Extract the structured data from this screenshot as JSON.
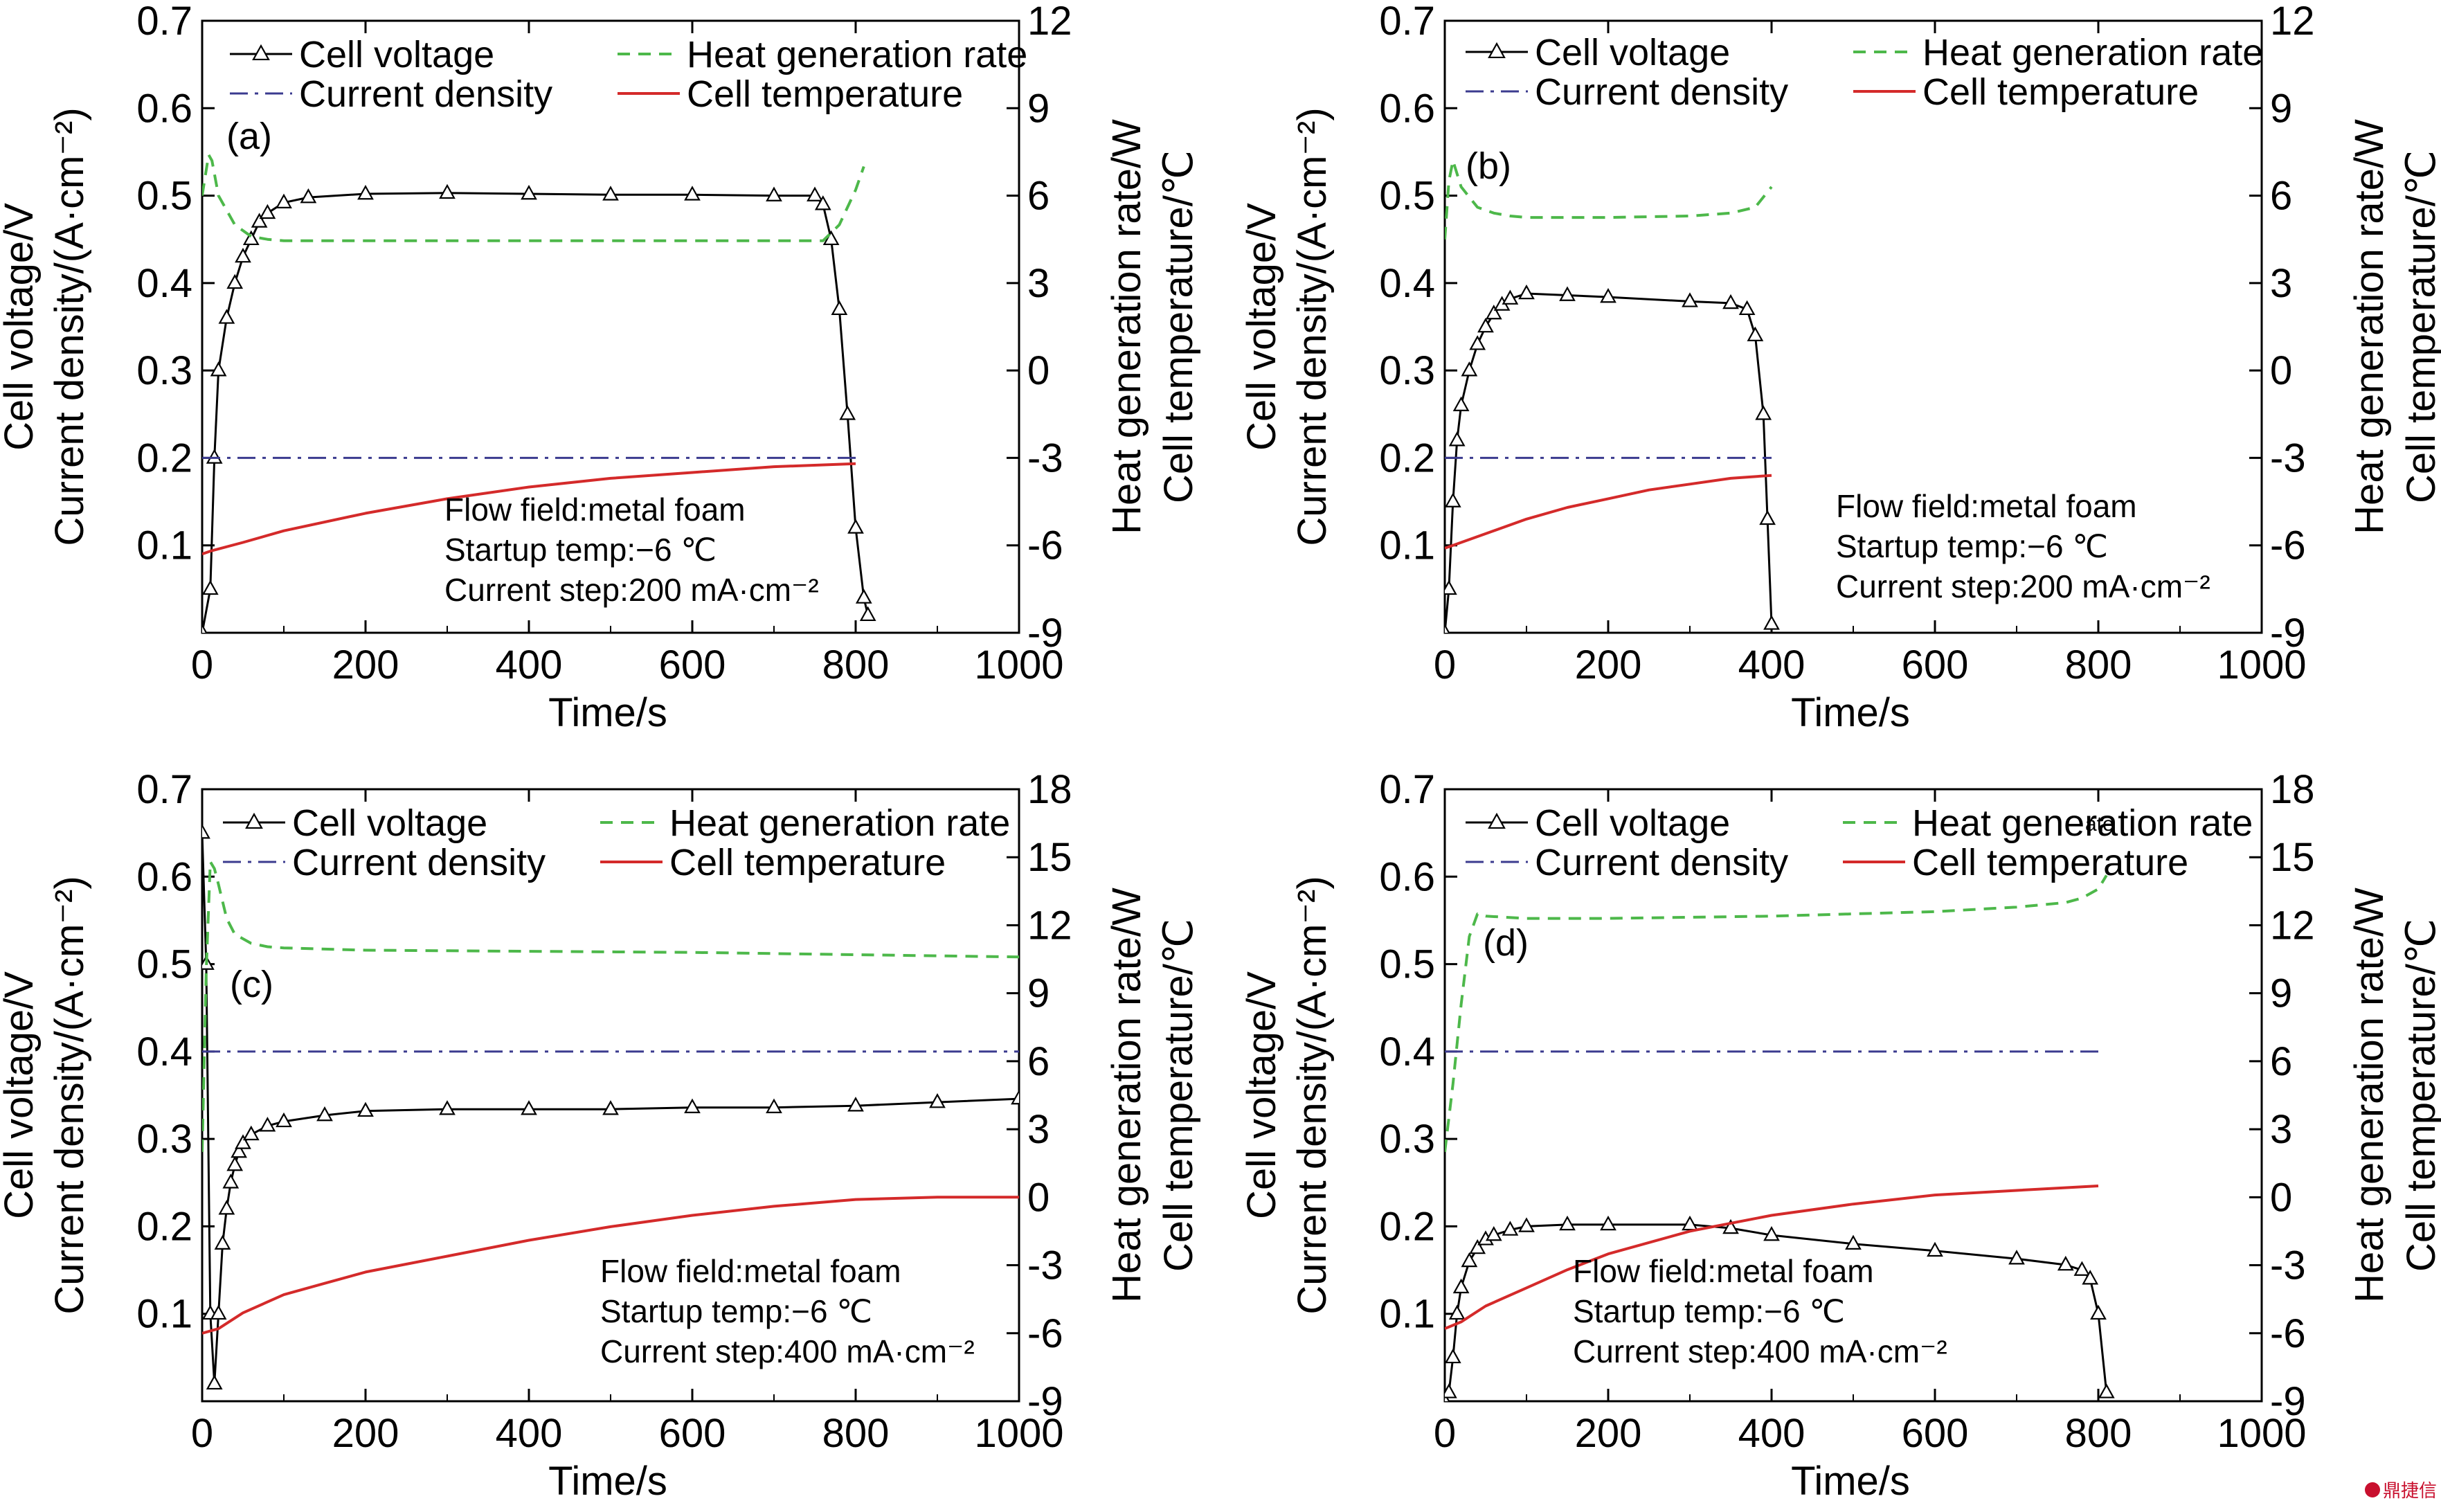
{
  "chart_data": [
    {
      "type": "line",
      "panel_label": "(a)",
      "xlabel": "Time/s",
      "ylabel_left": [
        "Cell voltage/V",
        "Current density/(A·cm⁻²)"
      ],
      "ylabel_right": [
        "Heat generation rate/W",
        "Cell temperature/℃"
      ],
      "xlim": [
        0,
        1000
      ],
      "xticks": [
        0,
        200,
        400,
        600,
        800,
        1000
      ],
      "ylim_left": [
        0,
        0.7
      ],
      "yticks_left": [
        0.1,
        0.2,
        0.3,
        0.4,
        0.5,
        0.6,
        0.7
      ],
      "ylim_right": [
        -9,
        12
      ],
      "yticks_right": [
        -9,
        -6,
        -3,
        0,
        3,
        6,
        9,
        12
      ],
      "legend": [
        "Cell voltage",
        "Current density",
        "Heat generation rate",
        "Cell temperature"
      ],
      "annotation": [
        "Flow field:metal foam",
        "Startup temp:−6 ℃",
        "Current step:200 mA·cm⁻²"
      ],
      "series": [
        {
          "name": "Cell voltage",
          "axis": "left",
          "x": [
            0,
            10,
            15,
            20,
            30,
            40,
            50,
            60,
            70,
            80,
            100,
            130,
            200,
            300,
            400,
            500,
            600,
            700,
            750,
            760,
            770,
            780,
            790,
            800,
            810,
            815
          ],
          "y": [
            0,
            0.05,
            0.2,
            0.3,
            0.36,
            0.4,
            0.43,
            0.45,
            0.47,
            0.48,
            0.492,
            0.498,
            0.502,
            0.503,
            0.502,
            0.501,
            0.501,
            0.5,
            0.5,
            0.49,
            0.45,
            0.37,
            0.25,
            0.12,
            0.04,
            0.02
          ]
        },
        {
          "name": "Current density",
          "axis": "left",
          "x": [
            0,
            800
          ],
          "y": [
            0.2,
            0.2
          ]
        },
        {
          "name": "Heat generation rate",
          "axis": "right",
          "x": [
            0,
            8,
            12,
            20,
            40,
            60,
            80,
            100,
            200,
            400,
            600,
            760,
            780,
            800,
            810
          ],
          "y": [
            6,
            7.4,
            7.2,
            6,
            5,
            4.6,
            4.5,
            4.45,
            4.45,
            4.45,
            4.45,
            4.45,
            5,
            6.2,
            7
          ]
        },
        {
          "name": "Cell temperature",
          "axis": "right",
          "x": [
            0,
            10,
            50,
            100,
            200,
            300,
            400,
            500,
            600,
            700,
            800
          ],
          "y": [
            -6.3,
            -6.2,
            -5.9,
            -5.5,
            -4.9,
            -4.4,
            -4,
            -3.7,
            -3.5,
            -3.3,
            -3.2
          ]
        }
      ]
    },
    {
      "type": "line",
      "panel_label": "(b)",
      "xlabel": "Time/s",
      "ylabel_left": [
        "Cell voltage/V",
        "Current density/(A·cm⁻²)"
      ],
      "ylabel_right": [
        "Heat generation rate/W",
        "Cell temperature/℃"
      ],
      "xlim": [
        0,
        1000
      ],
      "xticks": [
        0,
        200,
        400,
        600,
        800,
        1000
      ],
      "ylim_left": [
        0,
        0.7
      ],
      "yticks_left": [
        0.1,
        0.2,
        0.3,
        0.4,
        0.5,
        0.6,
        0.7
      ],
      "ylim_right": [
        -9,
        12
      ],
      "yticks_right": [
        -9,
        -6,
        -3,
        0,
        3,
        6,
        9,
        12
      ],
      "legend": [
        "Cell voltage",
        "Current density",
        "Heat generation rate",
        "Cell temperature"
      ],
      "annotation": [
        "Flow field:metal foam",
        "Startup temp:−6 ℃",
        "Current step:200 mA·cm⁻²"
      ],
      "series": [
        {
          "name": "Cell voltage",
          "axis": "left",
          "x": [
            0,
            5,
            10,
            15,
            20,
            30,
            40,
            50,
            60,
            70,
            80,
            100,
            150,
            200,
            300,
            350,
            370,
            380,
            390,
            395,
            400
          ],
          "y": [
            0,
            0.05,
            0.15,
            0.22,
            0.26,
            0.3,
            0.33,
            0.35,
            0.365,
            0.375,
            0.382,
            0.388,
            0.386,
            0.384,
            0.379,
            0.377,
            0.37,
            0.34,
            0.25,
            0.13,
            0.01
          ]
        },
        {
          "name": "Current density",
          "axis": "left",
          "x": [
            0,
            400
          ],
          "y": [
            0.2,
            0.2
          ]
        },
        {
          "name": "Heat generation rate",
          "axis": "right",
          "x": [
            0,
            5,
            10,
            20,
            40,
            60,
            80,
            100,
            200,
            300,
            350,
            380,
            400
          ],
          "y": [
            4.5,
            6.5,
            7.2,
            6.3,
            5.6,
            5.4,
            5.3,
            5.25,
            5.25,
            5.3,
            5.4,
            5.6,
            6.3
          ]
        },
        {
          "name": "Cell temperature",
          "axis": "right",
          "x": [
            0,
            10,
            50,
            100,
            150,
            200,
            250,
            300,
            350,
            400
          ],
          "y": [
            -6.1,
            -6,
            -5.6,
            -5.1,
            -4.7,
            -4.4,
            -4.1,
            -3.9,
            -3.7,
            -3.6
          ]
        }
      ]
    },
    {
      "type": "line",
      "panel_label": "(c)",
      "xlabel": "Time/s",
      "ylabel_left": [
        "Cell voltage/V",
        "Current density/(A·cm⁻²)"
      ],
      "ylabel_right": [
        "Heat generation rate/W",
        "Cell temperature/℃"
      ],
      "xlim": [
        0,
        1000
      ],
      "xticks": [
        0,
        200,
        400,
        600,
        800,
        1000
      ],
      "ylim_left": [
        0,
        0.7
      ],
      "yticks_left": [
        0.1,
        0.2,
        0.3,
        0.4,
        0.5,
        0.6,
        0.7
      ],
      "ylim_right": [
        -9,
        18
      ],
      "yticks_right": [
        -9,
        -6,
        -3,
        0,
        3,
        6,
        9,
        12,
        15,
        18
      ],
      "legend": [
        "Cell voltage",
        "Current density",
        "Heat generation rate",
        "Cell temperature"
      ],
      "annotation": [
        "Flow field:metal foam",
        "Startup temp:−6 ℃",
        "Current step:400 mA·cm⁻²"
      ],
      "series": [
        {
          "name": "Cell voltage",
          "axis": "left",
          "x": [
            0,
            5,
            10,
            15,
            20,
            25,
            30,
            35,
            40,
            45,
            50,
            60,
            80,
            100,
            150,
            200,
            300,
            400,
            500,
            600,
            700,
            800,
            900,
            1000
          ],
          "y": [
            0.65,
            0.5,
            0.1,
            0.02,
            0.1,
            0.18,
            0.22,
            0.25,
            0.27,
            0.285,
            0.295,
            0.305,
            0.315,
            0.32,
            0.327,
            0.332,
            0.334,
            0.334,
            0.334,
            0.336,
            0.336,
            0.338,
            0.342,
            0.346
          ]
        },
        {
          "name": "Current density",
          "axis": "left",
          "x": [
            0,
            1000
          ],
          "y": [
            0.4,
            0.4
          ]
        },
        {
          "name": "Heat generation rate",
          "axis": "right",
          "x": [
            0,
            5,
            10,
            15,
            20,
            30,
            40,
            60,
            80,
            100,
            200,
            400,
            600,
            800,
            1000
          ],
          "y": [
            2,
            10,
            14.8,
            14.5,
            13.8,
            12.3,
            11.6,
            11.2,
            11.05,
            11,
            10.9,
            10.85,
            10.8,
            10.7,
            10.6
          ]
        },
        {
          "name": "Cell temperature",
          "axis": "right",
          "x": [
            0,
            20,
            50,
            100,
            150,
            200,
            300,
            400,
            500,
            600,
            700,
            800,
            900,
            1000
          ],
          "y": [
            -6,
            -5.8,
            -5.1,
            -4.3,
            -3.8,
            -3.3,
            -2.6,
            -1.9,
            -1.3,
            -0.8,
            -0.4,
            -0.1,
            0,
            0
          ]
        }
      ]
    },
    {
      "type": "line",
      "panel_label": "(d)",
      "xlabel": "Time/s",
      "ylabel_left": [
        "Cell voltage/V",
        "Current density/(A·cm⁻²)"
      ],
      "ylabel_right": [
        "Heat generation rate/W",
        "Cell temperature/℃"
      ],
      "xlim": [
        0,
        1000
      ],
      "xticks": [
        0,
        200,
        400,
        600,
        800,
        1000
      ],
      "ylim_left": [
        0,
        0.7
      ],
      "yticks_left": [
        0.1,
        0.2,
        0.3,
        0.4,
        0.5,
        0.6,
        0.7
      ],
      "ylim_right": [
        -9,
        18
      ],
      "yticks_right": [
        -9,
        -6,
        -3,
        0,
        3,
        6,
        9,
        12,
        15,
        18
      ],
      "legend": [
        "Cell voltage",
        "Current density",
        "Heat generation rate",
        "Cell temperature"
      ],
      "stray_text": "ate",
      "annotation": [
        "Flow field:metal foam",
        "Startup temp:−6 ℃",
        "Current step:400 mA·cm⁻²"
      ],
      "series": [
        {
          "name": "Cell voltage",
          "axis": "left",
          "x": [
            0,
            5,
            10,
            15,
            20,
            30,
            40,
            50,
            60,
            80,
            100,
            150,
            200,
            300,
            350,
            400,
            500,
            600,
            700,
            760,
            780,
            790,
            800,
            810
          ],
          "y": [
            0,
            0.01,
            0.05,
            0.1,
            0.13,
            0.16,
            0.175,
            0.185,
            0.19,
            0.196,
            0.2,
            0.202,
            0.202,
            0.202,
            0.198,
            0.19,
            0.18,
            0.172,
            0.163,
            0.156,
            0.15,
            0.14,
            0.1,
            0.01
          ]
        },
        {
          "name": "Current density",
          "axis": "left",
          "x": [
            0,
            800
          ],
          "y": [
            0.4,
            0.4
          ]
        },
        {
          "name": "Heat generation rate",
          "axis": "right",
          "x": [
            0,
            5,
            10,
            20,
            30,
            40,
            50,
            100,
            200,
            400,
            600,
            700,
            760,
            780,
            800,
            810
          ],
          "y": [
            2,
            3.5,
            5,
            8.5,
            11.5,
            12.5,
            12.4,
            12.3,
            12.3,
            12.4,
            12.6,
            12.8,
            13,
            13.2,
            13.6,
            14.2
          ]
        },
        {
          "name": "Cell temperature",
          "axis": "right",
          "x": [
            0,
            20,
            50,
            100,
            150,
            200,
            300,
            400,
            500,
            600,
            700,
            800
          ],
          "y": [
            -5.8,
            -5.5,
            -4.8,
            -4,
            -3.2,
            -2.5,
            -1.5,
            -0.8,
            -0.3,
            0.1,
            0.3,
            0.5
          ]
        }
      ]
    }
  ],
  "colors": {
    "voltage": "#000000",
    "current": "#3b3b8f",
    "heat": "#4db84a",
    "temperature": "#d42a2a",
    "watermark": "#c8102e"
  },
  "watermark": {
    "text": "鼎捷信"
  }
}
